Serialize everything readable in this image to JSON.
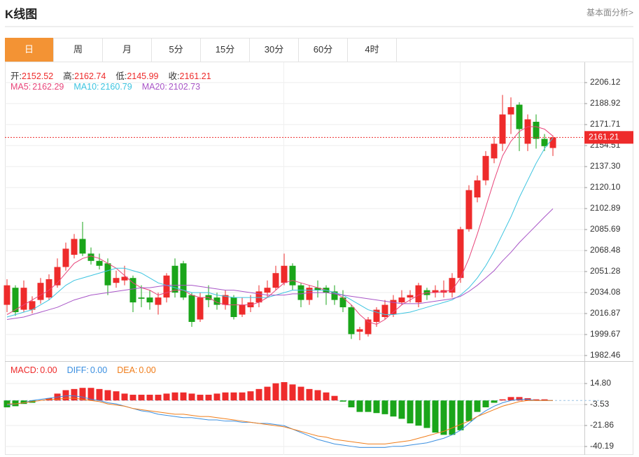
{
  "header": {
    "title": "K线图",
    "link": "基本面分析>"
  },
  "tabs": [
    "日",
    "周",
    "月",
    "5分",
    "15分",
    "30分",
    "60分",
    "4时"
  ],
  "active_tab": 0,
  "chart_data": {
    "type": "candlestick",
    "ohlc_labels": [
      "开:",
      "高:",
      "低:",
      "收:"
    ],
    "up_color": "#ee2b2b",
    "down_color": "#1aa51a",
    "candles": {
      "open": [
        2024,
        2038,
        2020,
        2020,
        2028,
        2030,
        2040,
        2055,
        2065,
        2078,
        2066,
        2060,
        2058,
        2042,
        2044,
        2046,
        2030,
        2030,
        2024,
        2030,
        2056,
        2058,
        2032,
        2012,
        2032,
        2030,
        2024,
        2030,
        2016,
        2022,
        2026,
        2034,
        2038,
        2042,
        2056,
        2040,
        2028,
        2038,
        2038,
        2035,
        2030,
        2022,
        2002,
        2000,
        2010,
        2014,
        2016,
        2026,
        2030,
        2026,
        2036,
        2034,
        2034,
        2034,
        2046,
        2086,
        2112,
        2126,
        2144,
        2156,
        2180,
        2188,
        2156,
        2174,
        2160,
        2152.52
      ],
      "high": [
        2045,
        2040,
        2044,
        2031,
        2046,
        2049,
        2062,
        2075,
        2082,
        2092,
        2071,
        2066,
        2062,
        2052,
        2056,
        2048,
        2040,
        2036,
        2034,
        2050,
        2062,
        2060,
        2034,
        2034,
        2040,
        2034,
        2036,
        2032,
        2030,
        2032,
        2040,
        2044,
        2056,
        2066,
        2058,
        2042,
        2040,
        2044,
        2040,
        2040,
        2036,
        2024,
        2006,
        2014,
        2022,
        2028,
        2032,
        2036,
        2036,
        2042,
        2038,
        2040,
        2044,
        2050,
        2088,
        2122,
        2130,
        2150,
        2162,
        2196,
        2194,
        2190,
        2180,
        2180,
        2164,
        2162.74
      ],
      "low": [
        2018,
        2015,
        2018,
        2017,
        2025,
        2028,
        2038,
        2052,
        2062,
        2064,
        2057,
        2053,
        2032,
        2038,
        2040,
        2018,
        2022,
        2020,
        2016,
        2026,
        2030,
        2028,
        2006,
        2010,
        2022,
        2020,
        2020,
        2012,
        2014,
        2018,
        2022,
        2030,
        2036,
        2040,
        2036,
        2022,
        2024,
        2030,
        2024,
        2024,
        2018,
        1996,
        1995,
        1998,
        2006,
        2012,
        2014,
        2024,
        2026,
        2022,
        2028,
        2030,
        2030,
        2030,
        2042,
        2084,
        2108,
        2122,
        2140,
        2150,
        2164,
        2150,
        2150,
        2152,
        2150,
        2145.99
      ],
      "close": [
        2040,
        2018,
        2038,
        2027,
        2042,
        2045,
        2055,
        2070,
        2078,
        2066,
        2060,
        2056,
        2040,
        2046,
        2047,
        2026,
        2029,
        2026,
        2030,
        2048,
        2034,
        2030,
        2010,
        2030,
        2028,
        2024,
        2032,
        2014,
        2024,
        2026,
        2035,
        2038,
        2050,
        2056,
        2040,
        2028,
        2038,
        2036,
        2034,
        2028,
        2022,
        2000,
        2004,
        2012,
        2020,
        2024,
        2028,
        2030,
        2032,
        2040,
        2032,
        2036,
        2036,
        2046,
        2086,
        2118,
        2126,
        2146,
        2156,
        2180,
        2186,
        2168,
        2176,
        2160,
        2154,
        2161.21
      ]
    },
    "ma_series": [
      {
        "name": "MA5:",
        "color": "#e8457a",
        "values": [
          2016,
          2020,
          2024,
          2028,
          2032,
          2036,
          2042,
          2050,
          2058,
          2062,
          2064,
          2062,
          2058,
          2054,
          2048,
          2042,
          2038,
          2036,
          2032,
          2034,
          2036,
          2036,
          2032,
          2030,
          2030,
          2026,
          2024,
          2024,
          2024,
          2024,
          2026,
          2030,
          2036,
          2042,
          2044,
          2042,
          2040,
          2038,
          2036,
          2034,
          2030,
          2024,
          2016,
          2010,
          2008,
          2012,
          2018,
          2024,
          2028,
          2032,
          2034,
          2034,
          2035,
          2036,
          2046,
          2062,
          2082,
          2104,
          2126,
          2146,
          2158,
          2166,
          2170,
          2170,
          2168,
          2162.29
        ]
      },
      {
        "name": "MA10:",
        "color": "#3cc4e0",
        "values": [
          2014,
          2016,
          2018,
          2020,
          2024,
          2028,
          2034,
          2040,
          2044,
          2046,
          2048,
          2050,
          2052,
          2054,
          2054,
          2052,
          2050,
          2046,
          2042,
          2040,
          2038,
          2036,
          2034,
          2034,
          2034,
          2032,
          2031,
          2030,
          2030,
          2030,
          2030,
          2030,
          2032,
          2034,
          2036,
          2036,
          2036,
          2036,
          2036,
          2034,
          2032,
          2028,
          2024,
          2020,
          2018,
          2016,
          2016,
          2017,
          2018,
          2020,
          2022,
          2024,
          2026,
          2028,
          2032,
          2038,
          2046,
          2056,
          2068,
          2082,
          2096,
          2112,
          2126,
          2140,
          2152,
          2160.79
        ]
      },
      {
        "name": "MA20:",
        "color": "#a855c7",
        "values": [
          2012,
          2013,
          2014,
          2016,
          2018,
          2020,
          2022,
          2025,
          2028,
          2030,
          2032,
          2033,
          2034,
          2035,
          2036,
          2037,
          2038,
          2038,
          2039,
          2040,
          2040,
          2040,
          2040,
          2039,
          2038,
          2037,
          2036,
          2036,
          2035,
          2034,
          2033,
          2032,
          2032,
          2032,
          2033,
          2033,
          2034,
          2034,
          2034,
          2033,
          2032,
          2031,
          2030,
          2029,
          2028,
          2027,
          2026,
          2025,
          2025,
          2025,
          2026,
          2027,
          2028,
          2029,
          2031,
          2035,
          2040,
          2046,
          2052,
          2060,
          2067,
          2075,
          2082,
          2089,
          2096,
          2102.73
        ]
      }
    ],
    "ylim": [
      1978.45,
      2222.18
    ],
    "yticks": [
      1982.46,
      1999.67,
      2016.87,
      2034.08,
      2051.28,
      2068.48,
      2085.69,
      2102.89,
      {
        "value": 2120.1,
        "label": "2120.10"
      },
      {
        "value": 2137.3,
        "label": "2137.30"
      },
      2154.51,
      2171.71,
      2188.92,
      2206.12
    ],
    "macd": {
      "ylim": [
        -47.52,
        33.13
      ],
      "yticks": [
        -40.19,
        -21.86,
        -3.53,
        {
          "value": 14.8,
          "label": "14.80"
        }
      ],
      "histogram": {
        "name": "MACD:",
        "color": "#ee2b2b",
        "legend_value": "0.00",
        "values": [
          -6,
          -5,
          -3,
          -2,
          0,
          2,
          6,
          9,
          10,
          11,
          11,
          10,
          9,
          8,
          6,
          5,
          5,
          5,
          5,
          6,
          7,
          7,
          6,
          5,
          5,
          6,
          7,
          7,
          7,
          8,
          10,
          12,
          15,
          16,
          14,
          12,
          10,
          9,
          7,
          4,
          -1,
          -6,
          -10,
          -10,
          -11,
          -12,
          -14,
          -16,
          -20,
          -22,
          -24,
          -28,
          -30,
          -30,
          -26,
          -18,
          -10,
          -6,
          -2,
          1,
          3,
          3,
          2,
          1,
          1,
          0
        ]
      },
      "lines": [
        {
          "name": "DIFF:",
          "color": "#3b8fe0",
          "legend_value": "0.00",
          "values": [
            -4,
            -3,
            -2,
            0,
            1,
            2,
            3,
            4,
            4,
            3,
            1,
            0,
            -2,
            -3,
            -5,
            -7,
            -9,
            -10,
            -12,
            -13,
            -14,
            -15,
            -15,
            -16,
            -17,
            -17,
            -18,
            -18,
            -19,
            -19,
            -20,
            -20,
            -21,
            -22,
            -25,
            -28,
            -31,
            -34,
            -36,
            -38,
            -39,
            -40,
            -41,
            -41,
            -41,
            -41,
            -40,
            -40,
            -39,
            -38,
            -37,
            -35,
            -33,
            -30,
            -26,
            -20,
            -14,
            -9,
            -5,
            -2,
            0,
            1,
            1,
            0,
            0,
            0
          ]
        },
        {
          "name": "DEA:",
          "color": "#f07d1a",
          "legend_value": "0.00",
          "values": [
            -3,
            -3,
            -2,
            -1,
            0,
            1,
            1,
            2,
            2,
            1,
            0,
            -1,
            -3,
            -4,
            -5,
            -7,
            -8,
            -9,
            -10,
            -11,
            -12,
            -12,
            -13,
            -14,
            -14,
            -15,
            -16,
            -17,
            -18,
            -19,
            -20,
            -21,
            -22,
            -23,
            -25,
            -27,
            -29,
            -31,
            -32,
            -34,
            -35,
            -36,
            -37,
            -38,
            -38,
            -38,
            -37,
            -36,
            -35,
            -33,
            -31,
            -29,
            -27,
            -24,
            -21,
            -18,
            -14,
            -11,
            -8,
            -5,
            -3,
            -1,
            0,
            0,
            0,
            0
          ]
        }
      ]
    },
    "grid": true
  }
}
